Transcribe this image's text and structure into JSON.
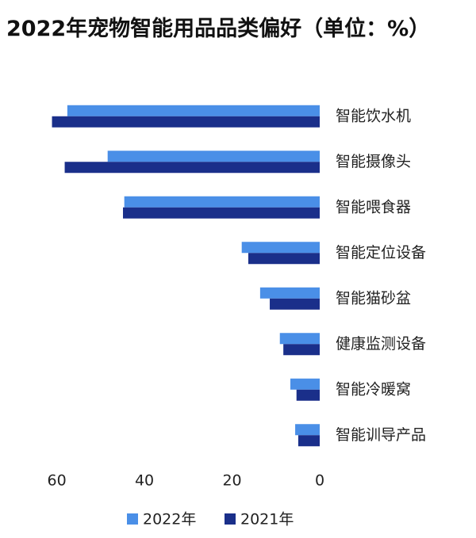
{
  "chart_data": {
    "type": "hbar",
    "title": "2022年宠物智能用品品类偏好（单位：%）",
    "categories": [
      "智能饮水机",
      "智能摄像头",
      "智能喂食器",
      "智能定位设备",
      "智能猫砂盆",
      "健康监测设备",
      "智能冷暖窝",
      "智能训导产品"
    ],
    "series": [
      {
        "name": "2022年",
        "color": "#4a8fe7",
        "values": [
          57.6,
          48.4,
          44.6,
          17.8,
          13.6,
          9.1,
          6.7,
          5.6
        ]
      },
      {
        "name": "2021年",
        "color": "#1a2f8a",
        "values": [
          61.1,
          58.2,
          44.9,
          16.3,
          11.4,
          8.3,
          5.3,
          4.9
        ]
      }
    ],
    "xlim": [
      0,
      65
    ],
    "xticks": [
      0,
      20,
      40,
      60
    ],
    "x_reversed": true,
    "grid": false
  }
}
